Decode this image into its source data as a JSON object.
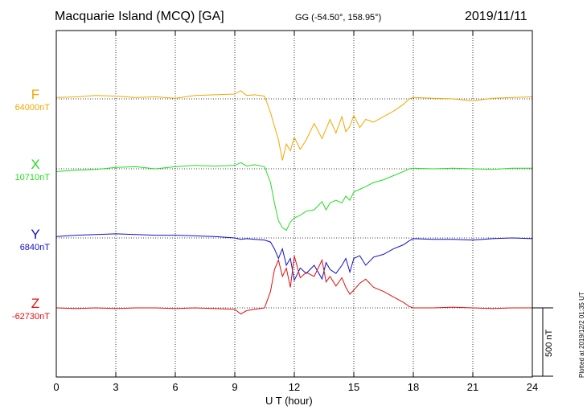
{
  "header": {
    "title": "Macquarie Island (MCQ)  [GA]",
    "coords": "GG (-54.50°, 158.95°)",
    "date": "2019/11/11"
  },
  "components": [
    {
      "letter": "F",
      "baseline": "64000nT",
      "color": "#f0a800"
    },
    {
      "letter": "X",
      "baseline": "10710nT",
      "color": "#22dd22"
    },
    {
      "letter": "Y",
      "baseline": "6840nT",
      "color": "#1010cc"
    },
    {
      "letter": "Z",
      "baseline": "-62730nT",
      "color": "#e01010"
    }
  ],
  "scale_label": "500 nT",
  "plotted": "Plotted at 2019/12/2 01:35 UT",
  "chart_data": {
    "type": "line",
    "xlabel": "U T (hour)",
    "xlim": [
      0,
      24
    ],
    "xticks": [
      0,
      3,
      6,
      9,
      12,
      15,
      18,
      21,
      24
    ],
    "xtick_labels": [
      "0",
      "3",
      "6",
      "9",
      "12",
      "15",
      "18",
      "21",
      "24"
    ],
    "grid": true,
    "scale_bar_nT": 500,
    "series": [
      {
        "name": "F",
        "baseline_nT": 64000,
        "x": [
          0,
          1,
          2,
          3,
          4,
          5,
          6,
          7,
          8,
          9,
          9.3,
          9.6,
          10,
          10.5,
          10.8,
          11.0,
          11.2,
          11.4,
          11.6,
          11.8,
          12.0,
          12.3,
          12.6,
          13.0,
          13.4,
          13.6,
          13.8,
          14.1,
          14.4,
          14.6,
          14.8,
          15.0,
          15.3,
          15.6,
          16.0,
          16.5,
          17.0,
          17.5,
          17.8,
          18,
          19,
          20,
          21,
          22,
          23,
          24
        ],
        "values": [
          10,
          15,
          25,
          20,
          10,
          15,
          5,
          25,
          30,
          35,
          60,
          25,
          30,
          20,
          -100,
          -200,
          -300,
          -450,
          -330,
          -380,
          -280,
          -370,
          -300,
          -180,
          -290,
          -220,
          -150,
          -250,
          -130,
          -240,
          -200,
          -120,
          -210,
          -150,
          -170,
          -130,
          -90,
          -40,
          0,
          10,
          5,
          0,
          -15,
          5,
          10,
          15
        ]
      },
      {
        "name": "X",
        "baseline_nT": 10710,
        "x": [
          0,
          1,
          2,
          3,
          4,
          5,
          6,
          7,
          8,
          9,
          9.3,
          9.6,
          10,
          10.5,
          10.8,
          11.0,
          11.2,
          11.4,
          11.6,
          11.8,
          12.0,
          12.3,
          12.6,
          13.0,
          13.4,
          13.6,
          13.8,
          14.1,
          14.4,
          14.6,
          14.8,
          15.0,
          15.3,
          15.6,
          16.0,
          16.5,
          17.0,
          17.5,
          17.8,
          18,
          19,
          20,
          21,
          22,
          23,
          24
        ],
        "values": [
          -20,
          -10,
          -5,
          10,
          15,
          0,
          15,
          25,
          20,
          25,
          45,
          20,
          30,
          15,
          -100,
          -250,
          -380,
          -430,
          -450,
          -390,
          -360,
          -340,
          -310,
          -300,
          -240,
          -300,
          -250,
          -230,
          -250,
          -200,
          -230,
          -170,
          -150,
          -130,
          -100,
          -80,
          -50,
          -20,
          0,
          5,
          0,
          5,
          0,
          -5,
          5,
          5
        ]
      },
      {
        "name": "Y",
        "baseline_nT": 6840,
        "x": [
          0,
          1,
          2,
          3,
          4,
          5,
          6,
          7,
          8,
          9,
          9.3,
          9.6,
          10,
          10.5,
          10.8,
          11.0,
          11.2,
          11.4,
          11.6,
          11.8,
          12.0,
          12.3,
          12.6,
          13.0,
          13.4,
          13.6,
          13.8,
          14.1,
          14.4,
          14.6,
          14.8,
          15.0,
          15.3,
          15.6,
          16.0,
          16.5,
          17.0,
          17.5,
          17.8,
          18,
          19,
          20,
          21,
          22,
          23,
          24
        ],
        "values": [
          10,
          20,
          25,
          30,
          25,
          20,
          20,
          15,
          10,
          0,
          -10,
          -5,
          -10,
          -15,
          -30,
          -80,
          -150,
          -80,
          -200,
          -150,
          -310,
          -220,
          -260,
          -200,
          -300,
          -180,
          -230,
          -260,
          -200,
          -150,
          -250,
          -150,
          -130,
          -200,
          -140,
          -120,
          -80,
          -50,
          -20,
          -5,
          -10,
          -10,
          -15,
          -5,
          0,
          -5
        ]
      },
      {
        "name": "Z",
        "baseline_nT": -62730,
        "x": [
          0,
          1,
          2,
          3,
          4,
          5,
          6,
          7,
          8,
          9,
          9.3,
          9.6,
          10,
          10.5,
          10.8,
          11.0,
          11.2,
          11.4,
          11.6,
          11.8,
          12.0,
          12.3,
          12.6,
          13.0,
          13.4,
          13.6,
          13.8,
          14.1,
          14.4,
          14.6,
          14.8,
          15.0,
          15.3,
          15.6,
          16.0,
          16.5,
          17.0,
          17.5,
          17.8,
          18,
          19,
          20,
          21,
          22,
          23,
          24
        ],
        "values": [
          0,
          -5,
          0,
          -5,
          0,
          0,
          -5,
          0,
          -5,
          -10,
          -45,
          -20,
          -10,
          0,
          120,
          280,
          350,
          230,
          290,
          150,
          380,
          220,
          260,
          230,
          350,
          190,
          230,
          160,
          220,
          150,
          100,
          130,
          180,
          210,
          150,
          120,
          80,
          40,
          10,
          0,
          0,
          5,
          0,
          -5,
          0,
          0
        ]
      }
    ]
  }
}
